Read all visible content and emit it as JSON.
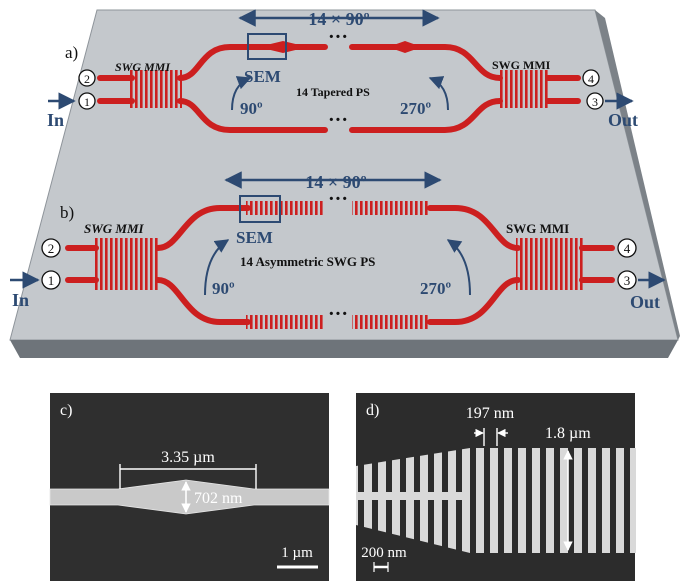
{
  "panel_a": {
    "label": "a)",
    "span_label": "14 × 90º",
    "dots_top": "···",
    "dots_bottom": "···",
    "sem_label": "SEM",
    "mmi_left": "SWG MMI",
    "mmi_right": "SWG MMI",
    "center_label": "14 Tapered PS",
    "phase_left": "90º",
    "phase_right": "270º",
    "port_in_top": "2",
    "port_in_bottom": "1",
    "port_out_top": "4",
    "port_out_bottom": "3",
    "in_label": "In",
    "out_label": "Out"
  },
  "panel_b": {
    "label": "b)",
    "span_label": "14 × 90º",
    "dots_top": "···",
    "dots_bottom": "···",
    "sem_label": "SEM",
    "mmi_left": "SWG MMI",
    "mmi_right": "SWG MMI",
    "center_label": "14 Asymmetric SWG PS",
    "phase_left": "90º",
    "phase_right": "270º",
    "port_in_top": "2",
    "port_in_bottom": "1",
    "port_out_top": "4",
    "port_out_bottom": "3",
    "in_label": "In",
    "out_label": "Out"
  },
  "panel_c": {
    "label": "c)",
    "length_label": "3.35 µm",
    "width_label": "702 nm",
    "scale_label": "1 µm"
  },
  "panel_d": {
    "label": "d)",
    "period_label": "197 nm",
    "width_label": "1.8 µm",
    "scale_label": "200 nm"
  },
  "colors": {
    "waveguide": "#cc1f1f",
    "chip_top": "#c4c8cc",
    "chip_side": "#6e747a",
    "annotation": "#2d4a72",
    "sem_background": "#2a2a2a"
  }
}
